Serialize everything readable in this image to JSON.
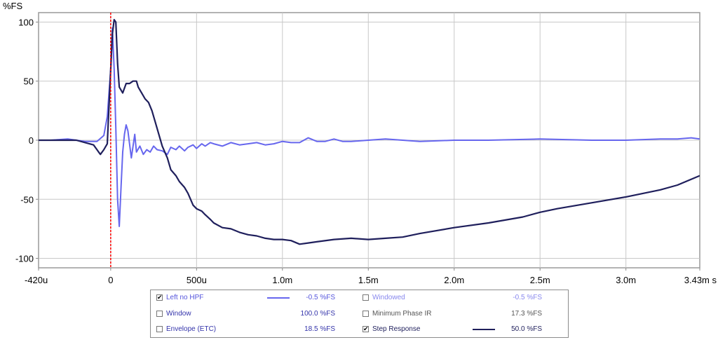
{
  "chart_data": {
    "type": "line",
    "ylabel": "%FS",
    "x_unit": "s",
    "xlim": [
      -0.00042,
      0.00343
    ],
    "ylim": [
      -108,
      108
    ],
    "y_ticks": [
      {
        "value": 100,
        "label": "100"
      },
      {
        "value": 50,
        "label": "50"
      },
      {
        "value": 0,
        "label": "0"
      },
      {
        "value": -50,
        "label": "-50"
      },
      {
        "value": -100,
        "label": "-100"
      }
    ],
    "x_ticks": [
      {
        "value": -0.00042,
        "label": "-420u"
      },
      {
        "value": 0,
        "label": "0"
      },
      {
        "value": 0.0005,
        "label": "500u"
      },
      {
        "value": 0.001,
        "label": "1.0m"
      },
      {
        "value": 0.0015,
        "label": "1.5m"
      },
      {
        "value": 0.002,
        "label": "2.0m"
      },
      {
        "value": 0.0025,
        "label": "2.5m"
      },
      {
        "value": 0.003,
        "label": "3.0m"
      },
      {
        "value": 0.00343,
        "label": "3.43m s"
      }
    ],
    "grid": true,
    "marker_x": 0,
    "marker_color": "#ff0000",
    "series": [
      {
        "name": "Left no HPF",
        "color": "#6666ee",
        "x": [
          -0.00042,
          -0.00035,
          -0.00025,
          -0.00015,
          -8e-05,
          -4e-05,
          -2e-05,
          0,
          1e-05,
          2e-05,
          3e-05,
          4e-05,
          5e-05,
          6e-05,
          7e-05,
          8e-05,
          9e-05,
          0.0001,
          0.00012,
          0.00014,
          0.00015,
          0.00017,
          0.00019,
          0.00021,
          0.00023,
          0.00025,
          0.00027,
          0.0003,
          0.00033,
          0.00035,
          0.00038,
          0.0004,
          0.00043,
          0.00045,
          0.00048,
          0.0005,
          0.00053,
          0.00055,
          0.00058,
          0.0006,
          0.00065,
          0.0007,
          0.00075,
          0.0008,
          0.00085,
          0.0009,
          0.00095,
          0.001,
          0.00105,
          0.0011,
          0.00115,
          0.0012,
          0.00125,
          0.0013,
          0.00135,
          0.0014,
          0.0015,
          0.0016,
          0.0018,
          0.002,
          0.0022,
          0.0025,
          0.0028,
          0.003,
          0.0032,
          0.0033,
          0.00338,
          0.00343
        ],
        "y": [
          0,
          0,
          1,
          -1,
          -1,
          4,
          20,
          60,
          95,
          60,
          10,
          -50,
          -73,
          -40,
          -10,
          5,
          13,
          8,
          -15,
          5,
          -10,
          -5,
          -12,
          -8,
          -10,
          -5,
          -8,
          -9,
          -12,
          -6,
          -8,
          -5,
          -9,
          -6,
          -4,
          -7,
          -3,
          -5,
          -2,
          -3,
          -5,
          -2,
          -4,
          -3,
          -2,
          -4,
          -3,
          -1,
          -2,
          -2,
          2,
          -1,
          -1,
          1,
          -1,
          -1,
          0,
          1,
          -1,
          0,
          0,
          1,
          0,
          0,
          1,
          1,
          2,
          1
        ]
      },
      {
        "name": "Step Response",
        "color": "#1f1f5c",
        "x": [
          -0.00042,
          -0.0003,
          -0.0002,
          -0.0001,
          -8e-05,
          -7e-05,
          -6e-05,
          -4e-05,
          -2e-05,
          0,
          1e-05,
          2e-05,
          3e-05,
          4e-05,
          5e-05,
          7e-05,
          9e-05,
          0.00011,
          0.00013,
          0.00015,
          0.00016,
          0.00018,
          0.0002,
          0.00022,
          0.00024,
          0.00026,
          0.00028,
          0.0003,
          0.00033,
          0.00035,
          0.00038,
          0.0004,
          0.00043,
          0.00045,
          0.00048,
          0.0005,
          0.00053,
          0.00055,
          0.00058,
          0.0006,
          0.00065,
          0.0007,
          0.00075,
          0.0008,
          0.00085,
          0.0009,
          0.00095,
          0.001,
          0.00105,
          0.0011,
          0.00115,
          0.0012,
          0.0013,
          0.0014,
          0.0015,
          0.0016,
          0.0017,
          0.0018,
          0.002,
          0.0022,
          0.0024,
          0.0025,
          0.0026,
          0.0028,
          0.003,
          0.0032,
          0.0033,
          0.00343
        ],
        "y": [
          0,
          0,
          0,
          -4,
          -8,
          -10,
          -12,
          -8,
          -3,
          60,
          90,
          102,
          100,
          65,
          45,
          40,
          48,
          48,
          50,
          50,
          45,
          40,
          35,
          32,
          25,
          15,
          5,
          -5,
          -15,
          -25,
          -30,
          -35,
          -40,
          -45,
          -55,
          -58,
          -60,
          -63,
          -67,
          -70,
          -74,
          -75,
          -78,
          -80,
          -81,
          -83,
          -84,
          -84,
          -85,
          -88,
          -87,
          -86,
          -84,
          -83,
          -84,
          -83,
          -82,
          -79,
          -74,
          -70,
          -65,
          -61,
          -58,
          -53,
          -48,
          -42,
          -38,
          -30
        ]
      }
    ]
  },
  "legend": {
    "items": [
      {
        "label": "Left no HPF",
        "checked": true,
        "value": "-0.5 %FS",
        "color": "#6666ee",
        "label_color": "#5555dd",
        "value_color": "#5555dd",
        "swatch": true
      },
      {
        "label": "Window",
        "checked": false,
        "value": "100.0 %FS",
        "color": "#333399",
        "label_color": "#3333aa",
        "value_color": "#3333aa",
        "swatch": false
      },
      {
        "label": "Envelope (ETC)",
        "checked": false,
        "value": "18.5 %FS",
        "color": "#333399",
        "label_color": "#3333aa",
        "value_color": "#3333aa",
        "swatch": false
      },
      {
        "label": "Windowed",
        "checked": false,
        "value": "-0.5 %FS",
        "color": "#8888ee",
        "label_color": "#8888ee",
        "value_color": "#8888ee",
        "swatch": false
      },
      {
        "label": "Minimum Phase IR",
        "checked": false,
        "value": "17.3 %FS",
        "color": "#666666",
        "label_color": "#555555",
        "value_color": "#555555",
        "swatch": false
      },
      {
        "label": "Step Response",
        "checked": true,
        "value": "50.0 %FS",
        "color": "#1f1f5c",
        "label_color": "#1f1f5c",
        "value_color": "#1f1f5c",
        "swatch": true
      }
    ]
  }
}
